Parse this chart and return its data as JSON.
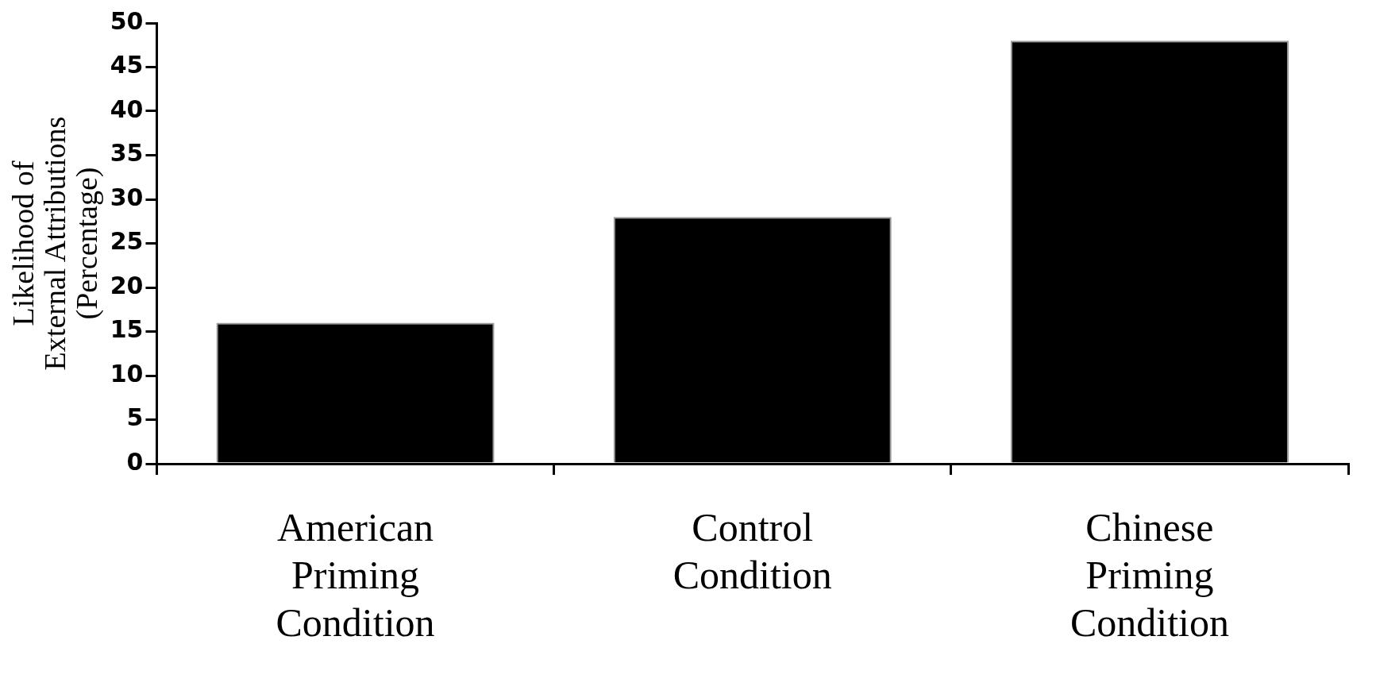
{
  "chart_data": {
    "type": "bar",
    "ylabel": "Likelihood of External Attributions (Percentage)",
    "categories": [
      "American Priming Condition",
      "Control Condition",
      "Chinese Priming Condition"
    ],
    "values": [
      16,
      28,
      48
    ],
    "color": "#000000",
    "ylim": [
      0,
      50
    ],
    "yticks": [
      0,
      5,
      10,
      15,
      20,
      25,
      30,
      35,
      40,
      45,
      50
    ],
    "grid": false,
    "legend": false
  }
}
